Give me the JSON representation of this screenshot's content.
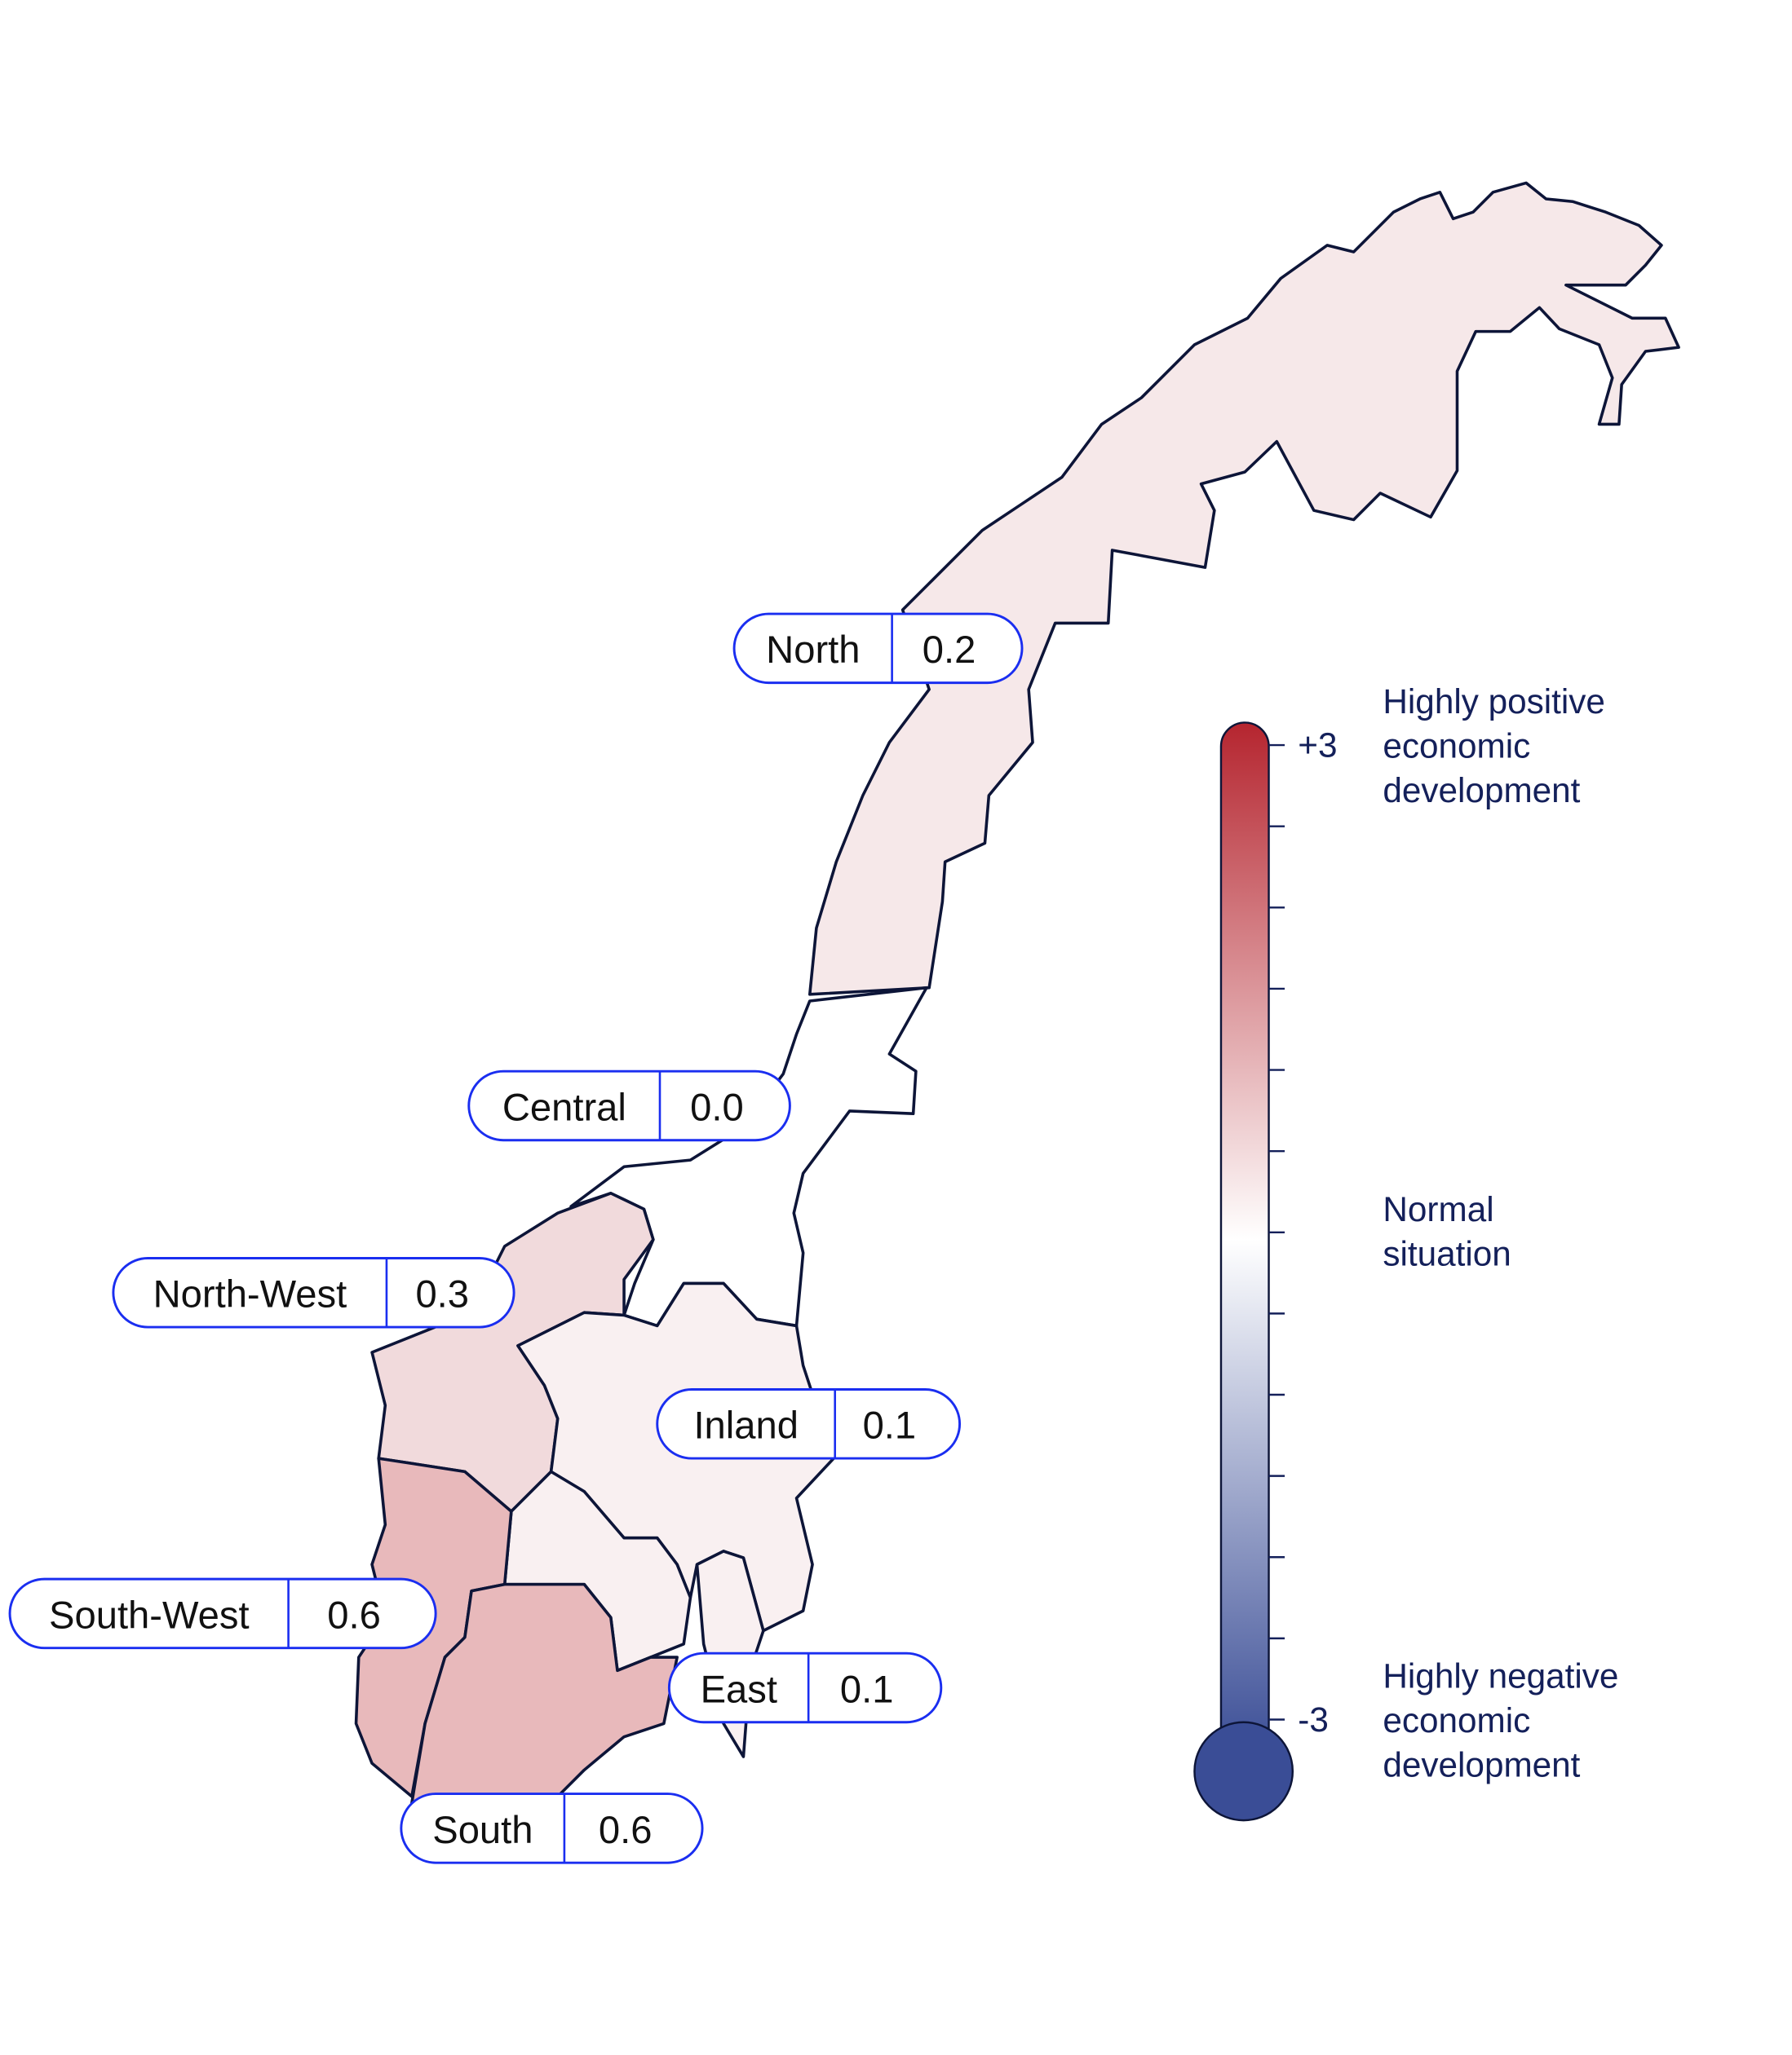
{
  "regions": [
    {
      "key": "north",
      "name": "North",
      "value": "0.2",
      "color": "#f6e8e9"
    },
    {
      "key": "central",
      "name": "Central",
      "value": "0.0",
      "color": "#ffffff"
    },
    {
      "key": "north_west",
      "name": "North-West",
      "value": "0.3",
      "color": "#f1dadc"
    },
    {
      "key": "inland",
      "name": "Inland",
      "value": "0.1",
      "color": "#f9f0f1"
    },
    {
      "key": "south_west",
      "name": "South-West",
      "value": "0.6",
      "color": "#e8b9bb"
    },
    {
      "key": "east",
      "name": "East",
      "value": "0.1",
      "color": "#f9f0f1"
    },
    {
      "key": "south",
      "name": "South",
      "value": "0.6",
      "color": "#e8b9bb"
    }
  ],
  "scale": {
    "max_label": "+3",
    "min_label": "-3",
    "max": 3,
    "min": -3,
    "top_color": "#b5252f",
    "mid_color": "#ffffff",
    "bottom_color": "#3a4d96",
    "top_text": [
      "Highly positive",
      "economic",
      "development"
    ],
    "mid_text": [
      "Normal",
      "situation"
    ],
    "bottom_text": [
      "Highly negative",
      "economic",
      "development"
    ]
  }
}
